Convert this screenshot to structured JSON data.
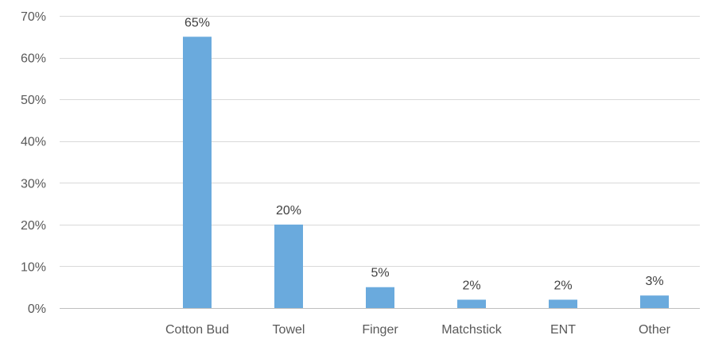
{
  "chart_data": {
    "type": "bar",
    "title": "",
    "xlabel": "",
    "ylabel": "",
    "categories": [
      "Cotton Bud",
      "Towel",
      "Finger",
      "Matchstick",
      "ENT",
      "Other"
    ],
    "values": [
      65,
      20,
      5,
      2,
      2,
      3
    ],
    "data_labels": [
      "65%",
      "20%",
      "5%",
      "2%",
      "2%",
      "3%"
    ],
    "ylim": [
      0,
      70
    ],
    "y_ticks": [
      0,
      10,
      20,
      30,
      40,
      50,
      60,
      70
    ],
    "y_tick_labels": [
      "0%",
      "10%",
      "20%",
      "30%",
      "40%",
      "50%",
      "60%",
      "70%"
    ],
    "grid": true,
    "legend": "none",
    "bar_color": "#6aaadd"
  }
}
